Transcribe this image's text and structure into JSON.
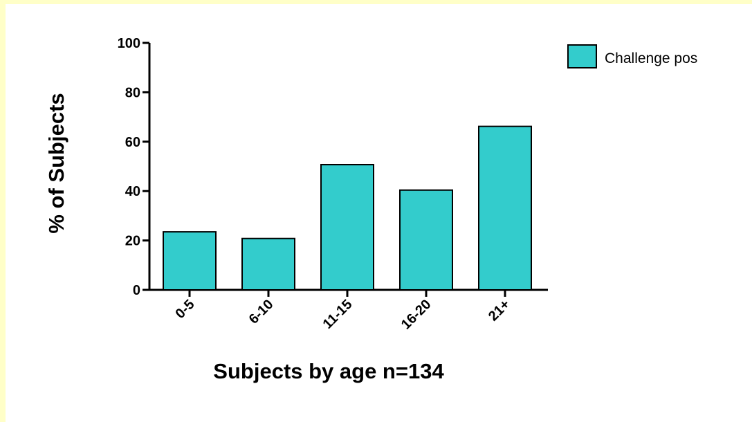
{
  "chart_data": {
    "type": "bar",
    "categories": [
      "0-5",
      "6-10",
      "11-15",
      "16-20",
      "21+"
    ],
    "series": [
      {
        "name": "Challenge pos",
        "values": [
          23.5,
          20.8,
          50.7,
          40.4,
          66.2
        ]
      }
    ],
    "xlabel": "Subjects by age n=134",
    "ylabel": "% of Subjects",
    "ylim": [
      0,
      100
    ],
    "yticks": [
      "0",
      "20",
      "40",
      "60",
      "80",
      "100"
    ],
    "grid": false,
    "legend_position": "top-right",
    "colors": {
      "bar_fill": "#33cccc",
      "bar_stroke": "#000000",
      "outer_background": "#ffffc8",
      "plot_background": "#ffffff"
    }
  }
}
